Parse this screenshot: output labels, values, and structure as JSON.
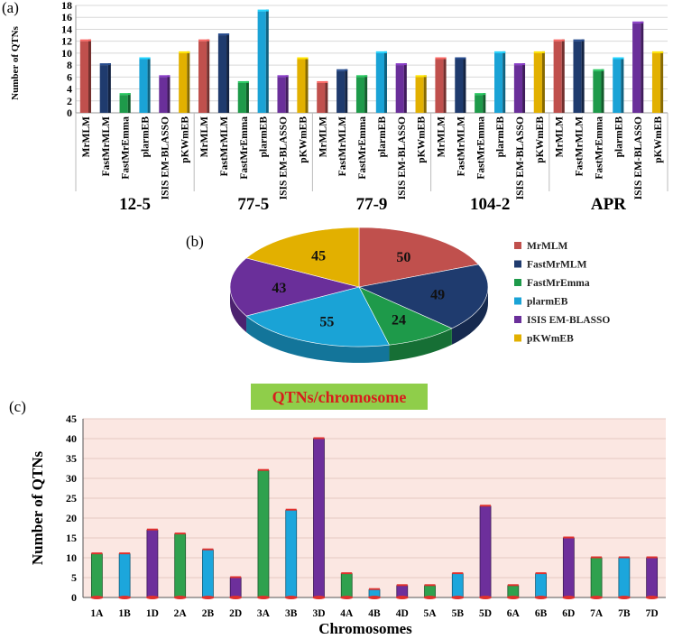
{
  "panel_labels": {
    "a": "(a)",
    "b": "(b)",
    "c": "(c)"
  },
  "colors": {
    "MrMLM": "#c0504d",
    "FastMrMLM": "#1f3b6e",
    "FastMrEmma": "#1e9a4a",
    "plarmEB": "#1aa3d6",
    "ISIS EM-BLASSO": "#6a2f9a",
    "pKWmEB": "#e2b000",
    "green_bar": "#2fa14e",
    "blue_bar": "#1ca6dc",
    "purple_bar": "#6d2f9b",
    "plot_bg_c": "#fbe7e2",
    "title_bg": "#8fce4a",
    "title_text": "#d81c1c"
  },
  "chart_data": [
    {
      "id": "a",
      "type": "bar",
      "title": "",
      "xlabel": "",
      "ylabel": "Number of QTNs",
      "ylim": [
        0,
        18
      ],
      "yticks": [
        0,
        2,
        4,
        6,
        8,
        10,
        12,
        14,
        16,
        18
      ],
      "methods": [
        "MrMLM",
        "FastMrMLM",
        "FastMrEmma",
        "plarmEB",
        "ISIS EM-BLASSO",
        "pKWmEB"
      ],
      "groups": [
        "12-5",
        "77-5",
        "77-9",
        "104-2",
        "APR"
      ],
      "series": [
        {
          "name": "MrMLM",
          "values": [
            12,
            12,
            5,
            9,
            12
          ]
        },
        {
          "name": "FastMrMLM",
          "values": [
            8,
            13,
            7,
            9,
            12
          ]
        },
        {
          "name": "FastMrEmma",
          "values": [
            3,
            5,
            6,
            3,
            7
          ]
        },
        {
          "name": "plarmEB",
          "values": [
            9,
            17,
            10,
            10,
            9
          ]
        },
        {
          "name": "ISIS EM-BLASSO",
          "values": [
            6,
            6,
            8,
            8,
            15
          ]
        },
        {
          "name": "pKWmEB",
          "values": [
            10,
            9,
            6,
            10,
            10
          ]
        }
      ]
    },
    {
      "id": "b",
      "type": "pie",
      "title": "",
      "legend_position": "right",
      "labels": [
        "MrMLM",
        "FastMrMLM",
        "FastMrEmma",
        "plarmEB",
        "ISIS EM-BLASSO",
        "pKWmEB"
      ],
      "legend_labels": [
        "MrMLM",
        "FastMrMLM",
        "FastMrEmma",
        "plarmEB",
        "ISIS EM-BLASSO",
        "pKWmEB"
      ],
      "values": [
        50,
        49,
        24,
        55,
        43,
        45
      ]
    },
    {
      "id": "c",
      "type": "bar",
      "title": "QTNs/chromosome",
      "xlabel": "Chromosomes",
      "ylabel": "Number of QTNs",
      "ylim": [
        0,
        45
      ],
      "yticks": [
        0,
        5,
        10,
        15,
        20,
        25,
        30,
        35,
        40,
        45
      ],
      "categories": [
        "1A",
        "1B",
        "1D",
        "2A",
        "2B",
        "2D",
        "3A",
        "3B",
        "3D",
        "4A",
        "4B",
        "4D",
        "5A",
        "5B",
        "5D",
        "6A",
        "6B",
        "6D",
        "7A",
        "7B",
        "7D"
      ],
      "values": [
        11,
        11,
        17,
        16,
        12,
        5,
        32,
        22,
        40,
        6,
        2,
        3,
        3,
        6,
        23,
        3,
        6,
        15,
        10,
        10,
        10
      ]
    }
  ]
}
